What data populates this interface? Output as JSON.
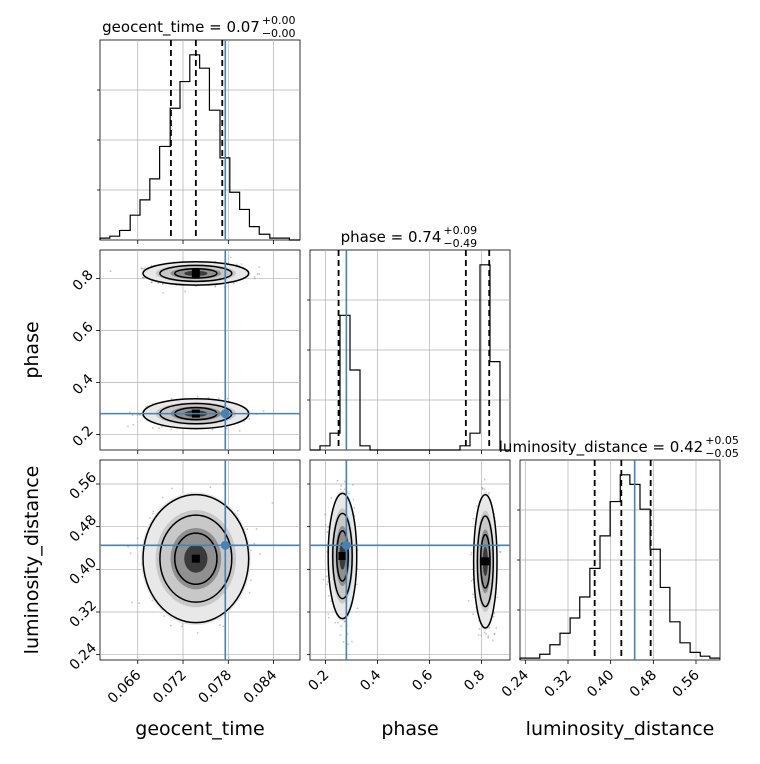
{
  "colors": {
    "truth": "#4682b4",
    "hist": "#000000",
    "quantile": "#000000",
    "grid": "#b0b0b0",
    "scatter": "#7f7f7f"
  },
  "chart_data": {
    "type": "corner",
    "parameters": [
      "geocent_time",
      "phase",
      "luminosity_distance"
    ],
    "titles": [
      {
        "label": "geocent_time = 0.07",
        "sup": "+0.00",
        "sub": "−0.00"
      },
      {
        "label": "phase = 0.74",
        "sup": "+0.09",
        "sub": "−0.49"
      },
      {
        "label": "luminosity_distance = 0.42",
        "sup": "+0.05",
        "sub": "−0.05"
      }
    ],
    "axis_labels": {
      "geocent_time": "geocent_time",
      "phase": "phase",
      "luminosity_distance": "luminosity_distance"
    },
    "ranges": {
      "geocent_time": [
        0.061,
        0.0875
      ],
      "phase": [
        0.14,
        0.91
      ],
      "luminosity_distance": [
        0.23,
        0.605
      ]
    },
    "ticks": {
      "geocent_time": [
        "0.066",
        "0.072",
        "0.078",
        "0.084"
      ],
      "phase_x": [
        "0.2",
        "0.4",
        "0.6",
        "0.8"
      ],
      "phase_y": [
        "0.2",
        "0.4",
        "0.6",
        "0.8"
      ],
      "luminosity_distance": [
        "0.24",
        "0.32",
        "0.40",
        "0.48",
        "0.56"
      ]
    },
    "truths": {
      "geocent_time": 0.0776,
      "phase": 0.28,
      "luminosity_distance": 0.445
    },
    "quantiles": {
      "geocent_time": [
        0.0704,
        0.0737,
        0.0772
      ],
      "phase": [
        0.25,
        0.74,
        0.83
      ],
      "luminosity_distance": [
        0.37,
        0.42,
        0.475
      ]
    },
    "histograms": {
      "geocent_time": {
        "bin_edges": [
          0.061,
          0.0623,
          0.0636,
          0.065,
          0.0663,
          0.0676,
          0.0689,
          0.0703,
          0.0716,
          0.0729,
          0.0742,
          0.0755,
          0.0769,
          0.0782,
          0.0795,
          0.0808,
          0.0821,
          0.0835,
          0.0848,
          0.0861,
          0.0875
        ],
        "counts": [
          1,
          2,
          5,
          13,
          21,
          32,
          49,
          69,
          83,
          97,
          90,
          68,
          43,
          25,
          16,
          7,
          3,
          1,
          1,
          0
        ]
      },
      "phase": {
        "bin_edges": [
          0.14,
          0.1785,
          0.217,
          0.2555,
          0.294,
          0.3325,
          0.371,
          0.4095,
          0.448,
          0.4865,
          0.525,
          0.5635,
          0.602,
          0.6405,
          0.679,
          0.7175,
          0.756,
          0.7945,
          0.833,
          0.8715,
          0.91
        ],
        "counts": [
          0,
          1,
          4,
          32,
          19,
          1,
          0,
          0,
          0,
          0,
          0,
          0,
          0,
          0,
          0,
          1,
          4,
          44,
          21,
          0
        ]
      },
      "luminosity_distance": {
        "bin_edges": [
          0.23,
          0.249,
          0.267,
          0.286,
          0.305,
          0.324,
          0.342,
          0.361,
          0.38,
          0.399,
          0.418,
          0.436,
          0.455,
          0.474,
          0.493,
          0.511,
          0.53,
          0.549,
          0.568,
          0.586,
          0.605
        ],
        "counts": [
          1,
          1,
          3,
          8,
          14,
          22,
          33,
          48,
          65,
          83,
          97,
          92,
          79,
          58,
          38,
          20,
          9,
          4,
          2,
          1
        ]
      }
    },
    "panels_2d": [
      {
        "x": "geocent_time",
        "y": "phase",
        "modes": [
          {
            "cx": 0.0737,
            "cy": 0.82,
            "sx": 0.0028,
            "sy": 0.018,
            "w": 1.0
          },
          {
            "cx": 0.0737,
            "cy": 0.28,
            "sx": 0.0028,
            "sy": 0.023,
            "w": 1.0
          }
        ]
      },
      {
        "x": "geocent_time",
        "y": "luminosity_distance",
        "modes": [
          {
            "cx": 0.0737,
            "cy": 0.42,
            "sx": 0.0028,
            "sy": 0.048,
            "w": 1.0
          }
        ]
      },
      {
        "x": "phase",
        "y": "luminosity_distance",
        "modes": [
          {
            "cx": 0.265,
            "cy": 0.425,
            "sx": 0.022,
            "sy": 0.047,
            "w": 1.0
          },
          {
            "cx": 0.815,
            "cy": 0.415,
            "sx": 0.018,
            "sy": 0.05,
            "w": 1.0
          }
        ]
      }
    ],
    "grid": true
  }
}
